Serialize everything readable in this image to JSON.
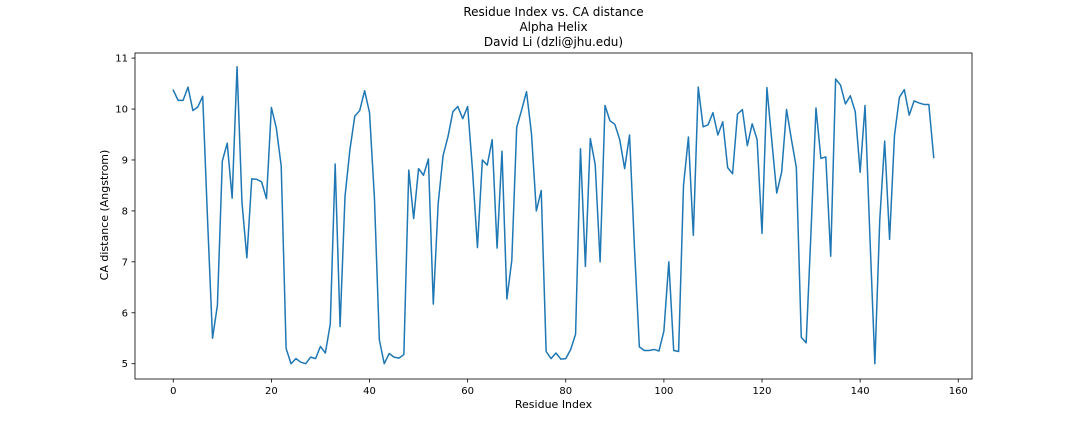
{
  "chart_data": {
    "type": "line",
    "title_lines": [
      "Residue Index vs. CA distance",
      "Alpha Helix",
      "David Li (dzli@jhu.edu)"
    ],
    "xlabel": "Residue Index",
    "ylabel": "CA distance (Angstrom)",
    "xlim": [
      -7.8,
      162.8
    ],
    "ylim": [
      4.7,
      11.1
    ],
    "xticks": [
      0,
      20,
      40,
      60,
      80,
      100,
      120,
      140,
      160
    ],
    "yticks": [
      5,
      6,
      7,
      8,
      9,
      10,
      11
    ],
    "grid": false,
    "legend": "none",
    "line_color": "#1f77b4",
    "series": [
      {
        "x": [
          0,
          1,
          2,
          3,
          4,
          5,
          6,
          7,
          8,
          9,
          10,
          11,
          12,
          13,
          14,
          15,
          16,
          17,
          18,
          19,
          20,
          21,
          22,
          23,
          24,
          25,
          26,
          27,
          28,
          29,
          30,
          31,
          32,
          33,
          34,
          35,
          36,
          37,
          38,
          39,
          40,
          41,
          42,
          43,
          44,
          45,
          46,
          47,
          48,
          49,
          50,
          51,
          52,
          53,
          54,
          55,
          56,
          57,
          58,
          59,
          60,
          61,
          62,
          63,
          64,
          65,
          66,
          67,
          68,
          69,
          70,
          71,
          72,
          73,
          74,
          75,
          76,
          77,
          78,
          79,
          80,
          81,
          82,
          83,
          84,
          85,
          86,
          87,
          88,
          89,
          90,
          91,
          92,
          93,
          94,
          95,
          96,
          97,
          98,
          99,
          100,
          101,
          102,
          103,
          104,
          105,
          106,
          107,
          108,
          109,
          110,
          111,
          112,
          113,
          114,
          115,
          116,
          117,
          118,
          119,
          120,
          121,
          122,
          123,
          124,
          125,
          126,
          127,
          128,
          129,
          130,
          131,
          132,
          133,
          134,
          135,
          136,
          137,
          138,
          139,
          140,
          141,
          142,
          143,
          144,
          145,
          146,
          147,
          148,
          149,
          150,
          151,
          152,
          153,
          154,
          155
        ],
        "y": [
          10.37,
          10.17,
          10.17,
          10.43,
          9.97,
          10.04,
          10.25,
          7.8,
          5.5,
          6.15,
          8.98,
          9.33,
          8.25,
          10.83,
          8.17,
          7.08,
          8.63,
          8.62,
          8.57,
          8.24,
          10.03,
          9.63,
          8.88,
          5.3,
          5.0,
          5.1,
          5.03,
          5.0,
          5.13,
          5.1,
          5.34,
          5.21,
          5.78,
          8.92,
          5.73,
          8.28,
          9.2,
          9.86,
          9.97,
          10.36,
          9.93,
          8.26,
          5.47,
          5.0,
          5.2,
          5.13,
          5.11,
          5.18,
          8.8,
          7.85,
          8.83,
          8.7,
          9.02,
          6.17,
          8.15,
          9.09,
          9.46,
          9.95,
          10.05,
          9.81,
          10.05,
          8.79,
          7.28,
          9.0,
          8.9,
          9.4,
          7.27,
          9.17,
          6.27,
          7.03,
          9.64,
          9.98,
          10.34,
          9.53,
          8.0,
          8.4,
          5.24,
          5.1,
          5.21,
          5.09,
          5.1,
          5.28,
          5.58,
          9.22,
          6.91,
          9.42,
          8.91,
          7.0,
          10.07,
          9.77,
          9.7,
          9.4,
          8.83,
          9.49,
          7.28,
          5.33,
          5.26,
          5.26,
          5.28,
          5.25,
          5.64,
          7.0,
          5.26,
          5.24,
          8.5,
          9.45,
          7.52,
          10.43,
          9.65,
          9.69,
          9.93,
          9.49,
          9.75,
          8.85,
          8.73,
          9.9,
          9.99,
          9.28,
          9.71,
          9.4,
          7.56,
          10.42,
          9.37,
          8.35,
          8.76,
          9.99,
          9.4,
          8.85,
          5.52,
          5.41,
          7.62,
          10.02,
          9.03,
          9.06,
          7.11,
          10.59,
          10.47,
          10.1,
          10.26,
          9.95,
          8.76,
          10.07,
          7.48,
          5.0,
          7.82,
          9.37,
          7.44,
          9.48,
          10.23,
          10.38,
          9.88,
          10.16,
          10.12,
          10.09,
          10.09,
          9.05
        ]
      }
    ]
  }
}
